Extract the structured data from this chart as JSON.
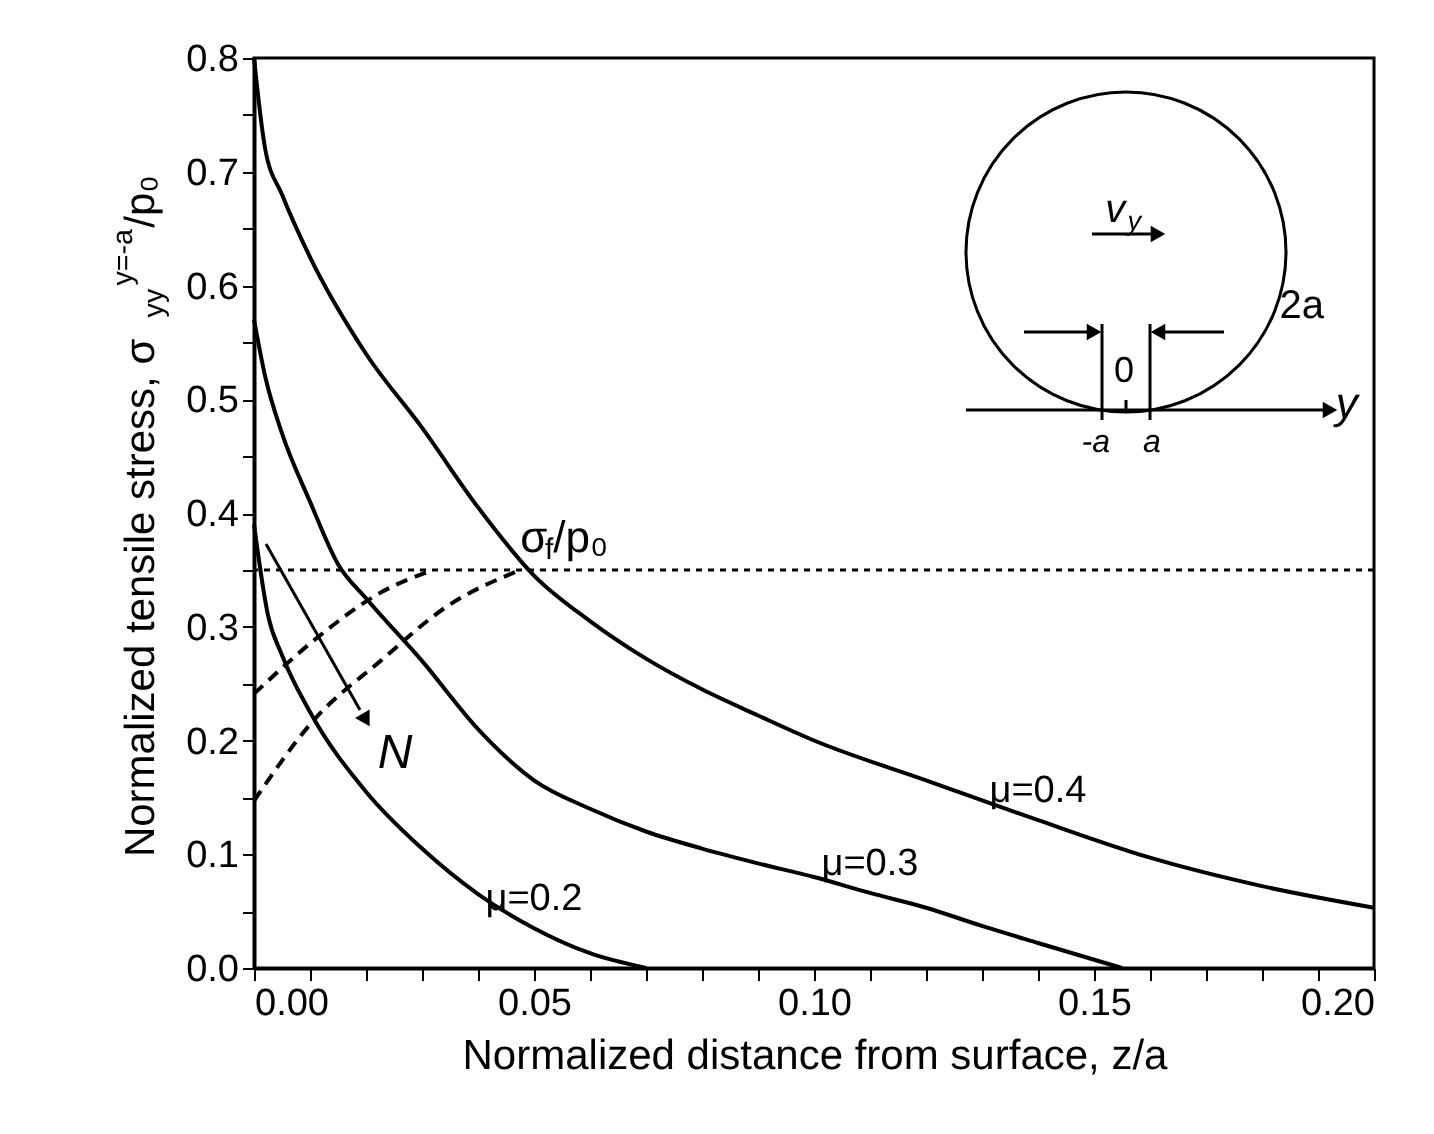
{
  "chart_data": {
    "type": "line",
    "xlabel": "Normalized distance from surface, z/a",
    "ylabel": "Normalized tensile stress, σ$_{yy}$$^{y=-a}$/p₀",
    "xlim": [
      0,
      0.2
    ],
    "ylim": [
      0,
      0.8
    ],
    "xticks": [
      {
        "value": 0,
        "label": "0.00"
      },
      {
        "value": 0.01,
        "label": null
      },
      {
        "value": 0.02,
        "label": null
      },
      {
        "value": 0.03,
        "label": null
      },
      {
        "value": 0.04,
        "label": null
      },
      {
        "value": 0.05,
        "label": "0.05"
      },
      {
        "value": 0.06,
        "label": null
      },
      {
        "value": 0.07,
        "label": null
      },
      {
        "value": 0.08,
        "label": null
      },
      {
        "value": 0.09,
        "label": null
      },
      {
        "value": 0.1,
        "label": "0.10"
      },
      {
        "value": 0.11,
        "label": null
      },
      {
        "value": 0.12,
        "label": null
      },
      {
        "value": 0.13,
        "label": null
      },
      {
        "value": 0.14,
        "label": null
      },
      {
        "value": 0.15,
        "label": "0.15"
      },
      {
        "value": 0.16,
        "label": null
      },
      {
        "value": 0.17,
        "label": null
      },
      {
        "value": 0.18,
        "label": null
      },
      {
        "value": 0.19,
        "label": null
      },
      {
        "value": 0.2,
        "label": "0.20"
      }
    ],
    "yticks": [
      {
        "value": 0,
        "label": "0.0"
      },
      {
        "value": 0.05,
        "label": null
      },
      {
        "value": 0.1,
        "label": "0.1"
      },
      {
        "value": 0.15,
        "label": null
      },
      {
        "value": 0.2,
        "label": "0.2"
      },
      {
        "value": 0.25,
        "label": null
      },
      {
        "value": 0.3,
        "label": "0.3"
      },
      {
        "value": 0.35,
        "label": null
      },
      {
        "value": 0.4,
        "label": "0.4"
      },
      {
        "value": 0.45,
        "label": null
      },
      {
        "value": 0.5,
        "label": "0.5"
      },
      {
        "value": 0.55,
        "label": null
      },
      {
        "value": 0.6,
        "label": "0.6"
      },
      {
        "value": 0.65,
        "label": null
      },
      {
        "value": 0.7,
        "label": "0.7"
      },
      {
        "value": 0.75,
        "label": null
      },
      {
        "value": 0.8,
        "label": "0.8"
      }
    ],
    "grid": false,
    "marker": "none",
    "series": [
      {
        "name": "μ=0.2",
        "color": "#000000",
        "line_style": "solid",
        "x": [
          0,
          0.0025,
          0.005,
          0.01,
          0.02,
          0.03,
          0.04,
          0.05,
          0.06,
          0.07
        ],
        "values": [
          0.39,
          0.31,
          0.275,
          0.225,
          0.155,
          0.105,
          0.065,
          0.035,
          0.013,
          0
        ]
      },
      {
        "name": "μ=0.3",
        "color": "#000000",
        "line_style": "solid",
        "x": [
          0,
          0.002,
          0.005,
          0.01,
          0.015,
          0.02,
          0.03,
          0.04,
          0.05,
          0.06,
          0.07,
          0.08,
          0.09,
          0.1,
          0.11,
          0.12,
          0.13,
          0.14,
          0.155
        ],
        "values": [
          0.57,
          0.52,
          0.47,
          0.41,
          0.355,
          0.325,
          0.27,
          0.21,
          0.165,
          0.14,
          0.12,
          0.105,
          0.092,
          0.08,
          0.066,
          0.053,
          0.037,
          0.022,
          0
        ]
      },
      {
        "name": "μ=0.4",
        "color": "#000000",
        "line_style": "solid",
        "x": [
          0,
          0.002,
          0.005,
          0.01,
          0.02,
          0.03,
          0.04,
          0.05,
          0.06,
          0.07,
          0.08,
          0.09,
          0.1,
          0.12,
          0.14,
          0.16,
          0.18,
          0.2
        ],
        "values": [
          0.8,
          0.72,
          0.68,
          0.625,
          0.54,
          0.475,
          0.405,
          0.345,
          0.305,
          0.272,
          0.245,
          0.222,
          0.2,
          0.165,
          0.13,
          0.097,
          0.072,
          0.053
        ]
      },
      {
        "color": "#000000",
        "line_style": "dashed",
        "x": [
          0,
          0.0107,
          0.0226,
          0.0345,
          0.0476
        ],
        "values": [
          0.147,
          0.218,
          0.27,
          0.318,
          0.35
        ]
      },
      {
        "color": "#000000",
        "line_style": "dashed",
        "x": [
          0,
          0.0107,
          0.0226,
          0.032
        ],
        "values": [
          0.241,
          0.288,
          0.33,
          0.35
        ]
      }
    ],
    "ref_lines": [
      {
        "axis": "y",
        "value": 0.35,
        "label": "σ$_{f}$/p₀",
        "color": "#000000",
        "line_style": "dotted"
      }
    ],
    "annotations": [
      "N",
      "v$_{y}$",
      "2a",
      "0",
      "y",
      "-a",
      "a"
    ]
  }
}
